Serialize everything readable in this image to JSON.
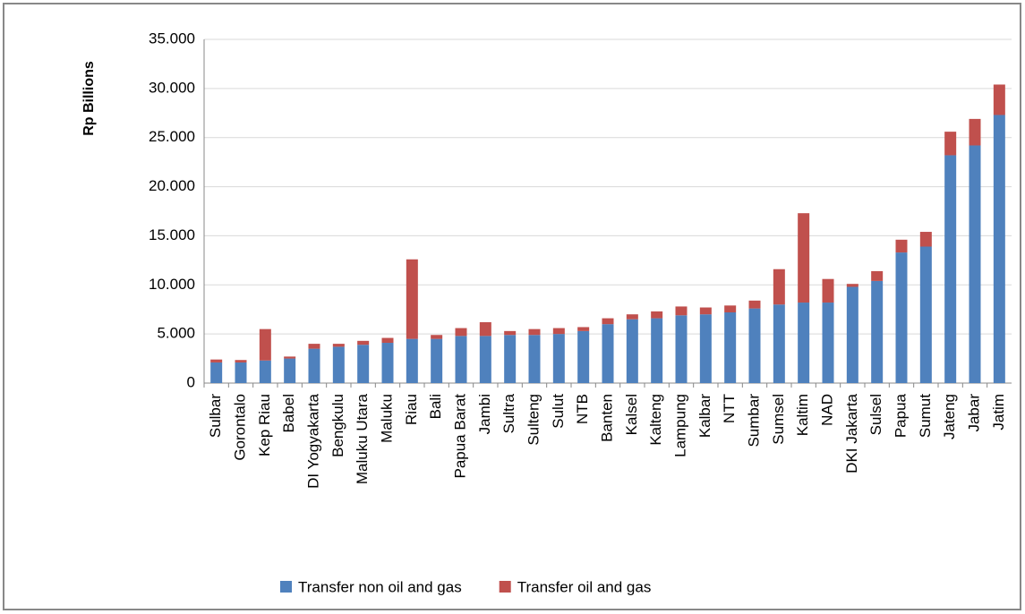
{
  "chart_data": {
    "type": "stacked-bar",
    "y_label": "Rp Billions",
    "categories": [
      "Sulbar",
      "Gorontalo",
      "Kep Riau",
      "Babel",
      "DI Yogyakarta",
      "Bengkulu",
      "Maluku Utara",
      "Maluku",
      "Riau",
      "Bali",
      "Papua Barat",
      "Jambi",
      "Sultra",
      "Sulteng",
      "Sulut",
      "NTB",
      "Banten",
      "Kalsel",
      "Kalteng",
      "Lampung",
      "Kalbar",
      "NTT",
      "Sumbar",
      "Sumsel",
      "Kaltim",
      "NAD",
      "DKI Jakarta",
      "Sulsel",
      "Papua",
      "Sumut",
      "Jateng",
      "Jabar",
      "Jatim"
    ],
    "series": [
      {
        "name": "Transfer non oil and gas",
        "color": "#4f81bd",
        "values": [
          2100,
          2100,
          2300,
          2500,
          3500,
          3700,
          3900,
          4100,
          4500,
          4500,
          4800,
          4800,
          4900,
          4900,
          5000,
          5300,
          6000,
          6500,
          6600,
          6900,
          7000,
          7200,
          7600,
          8000,
          8200,
          8200,
          9800,
          10400,
          13300,
          13900,
          23200,
          24200,
          27300
        ]
      },
      {
        "name": "Transfer oil and gas",
        "color": "#c0504d",
        "values": [
          300,
          250,
          3200,
          200,
          500,
          300,
          400,
          500,
          8100,
          400,
          800,
          1400,
          400,
          600,
          600,
          400,
          600,
          500,
          700,
          900,
          700,
          700,
          800,
          3600,
          9100,
          2400,
          300,
          1000,
          1300,
          1500,
          2400,
          2700,
          3100
        ]
      }
    ],
    "ylim": [
      0,
      35000
    ],
    "yticks": [
      0,
      {
        "value": 5000,
        "label": "5.000"
      },
      {
        "value": 10000,
        "label": "10.000"
      },
      {
        "value": 15000,
        "label": "15.000"
      },
      {
        "value": 20000,
        "label": "20.000"
      },
      {
        "value": 25000,
        "label": "25.000"
      },
      {
        "value": 30000,
        "label": "30.000"
      },
      {
        "value": 35000,
        "label": "35.000"
      }
    ],
    "grid": true,
    "legend": "bottom"
  }
}
